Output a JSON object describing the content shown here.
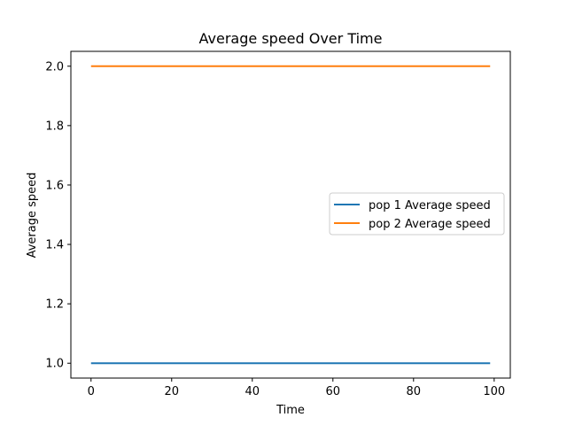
{
  "chart_data": {
    "type": "line",
    "title": "Average speed Over Time",
    "xlabel": "Time",
    "ylabel": "Average speed",
    "xlim": [
      -5,
      104
    ],
    "ylim": [
      0.95,
      2.05
    ],
    "xticks": [
      0,
      20,
      40,
      60,
      80,
      100
    ],
    "yticks": [
      1.0,
      1.2,
      1.4,
      1.6,
      1.8,
      2.0
    ],
    "xtick_labels": [
      "0",
      "20",
      "40",
      "60",
      "80",
      "100"
    ],
    "ytick_labels": [
      "1.0",
      "1.2",
      "1.4",
      "1.6",
      "1.8",
      "2.0"
    ],
    "grid": false,
    "legend_position": "center-right",
    "series": [
      {
        "name": "pop 1 Average speed",
        "color": "#1f77b4",
        "x": [
          0,
          99
        ],
        "y": [
          1.0,
          1.0
        ]
      },
      {
        "name": "pop 2 Average speed",
        "color": "#ff7f0e",
        "x": [
          0,
          99
        ],
        "y": [
          2.0,
          2.0
        ]
      }
    ]
  }
}
